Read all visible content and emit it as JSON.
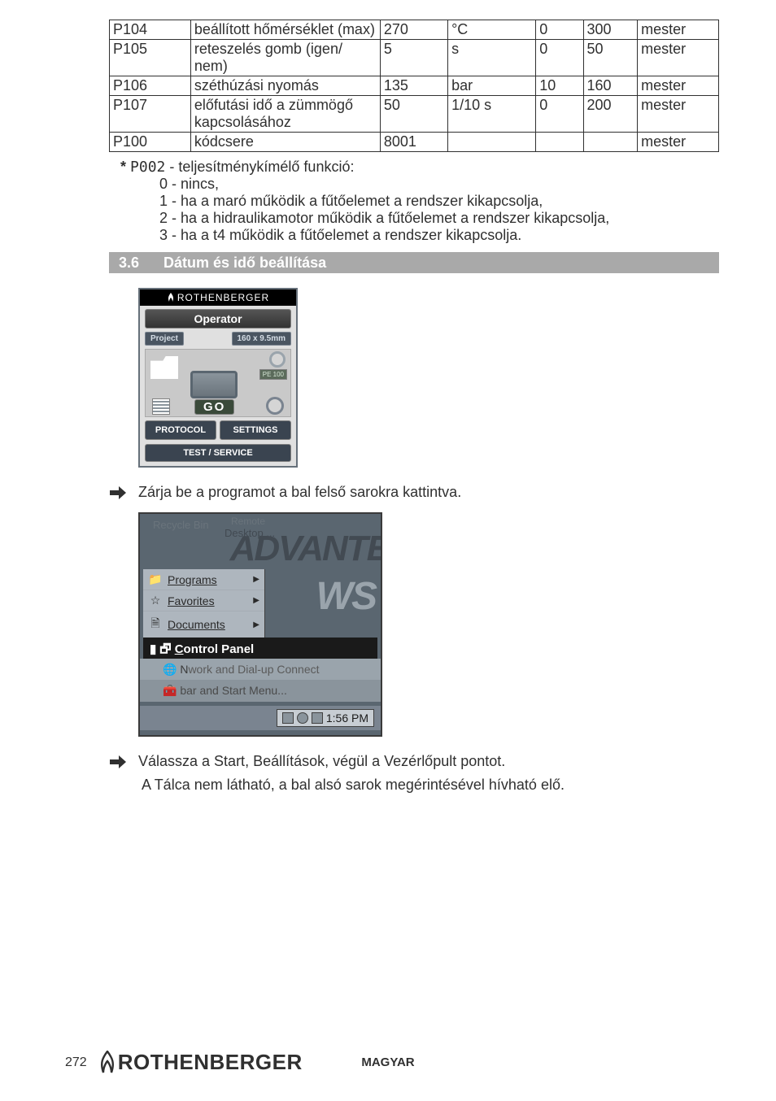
{
  "table": {
    "rows": [
      {
        "code": "P104",
        "desc": "beállított hőmérséklet (max)",
        "val": "270",
        "unit": "°C",
        "min": "0",
        "max": "300",
        "who": "mester"
      },
      {
        "code": "P105",
        "desc": "reteszelés gomb (igen/ nem)",
        "val": "5",
        "unit": "s",
        "min": "0",
        "max": "50",
        "who": "mester"
      },
      {
        "code": "P106",
        "desc": "széthúzási nyomás",
        "val": "135",
        "unit": "bar",
        "min": "10",
        "max": "160",
        "who": "mester"
      },
      {
        "code": "P107",
        "desc": "előfutási idő a zümmögő kapcsolásához",
        "val": "50",
        "unit": "1/10 s",
        "min": "0",
        "max": "200",
        "who": "mester"
      },
      {
        "code": "P100",
        "desc": "kódcsere",
        "val": "8001",
        "unit": "",
        "min": "",
        "max": "",
        "who": "mester"
      }
    ]
  },
  "note": {
    "lead_prefix": "* ",
    "lead_code": "P002",
    "lead_rest": " - teljesítménykímélő funkció:",
    "lines": [
      "0 - nincs,",
      "1 - ha a maró működik a fűtőelemet a rendszer kikapcsolja,",
      "2 - ha a hidraulikamotor működik a fűtőelemet a rendszer kikapcsolja,",
      "3 - ha a t4 működik a fűtőelemet a rendszer kikapcsolja."
    ]
  },
  "section": {
    "num": "3.6",
    "title": "Dátum és idő beállítása"
  },
  "app": {
    "header": "ROTHENBERGER",
    "operator": "Operator",
    "project": "Project",
    "size": "160 x 9.5mm",
    "pe": "PE 100",
    "go": "GO",
    "protocol": "PROTOCOL",
    "settings": "SETTINGS",
    "test": "TEST / SERVICE"
  },
  "step1": "Zárja be a programot a bal felső sarokra kattintva.",
  "win": {
    "recycle": "Recycle Bin",
    "remote": "Remote",
    "desktop": "Desktop ...",
    "bg1": "ADVANTE",
    "bg2": "WS",
    "programs": "Programs",
    "favorites": "Favorites",
    "documents": "Documents",
    "control_panel": "Control Panel",
    "network": "work and Dial-up Connect",
    "taskbar": "bar and Start Menu...",
    "clock": "1:56 PM"
  },
  "step2": "Válassza a Start, Beállítások, végül a Vezérlőpult pontot.",
  "step2_sub": "A Tálca nem látható, a bal alsó sarok megérintésével hívható elő.",
  "footer": {
    "page": "272",
    "logo": "ROTHENBERGER",
    "lang": "MAGYAR"
  }
}
